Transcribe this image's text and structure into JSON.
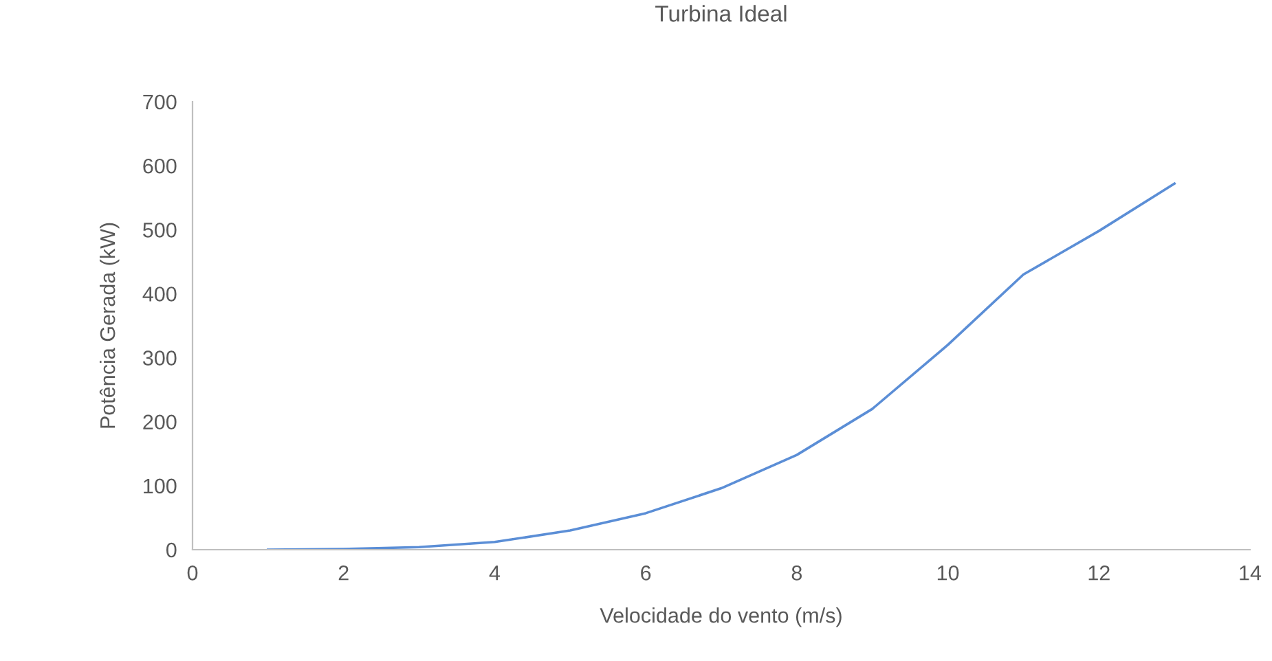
{
  "chart_data": {
    "type": "line",
    "title": "Turbina Ideal",
    "xlabel": "Velocidade do vento (m/s)",
    "ylabel": "Potência Gerada (kW)",
    "series": [
      {
        "color": "#5b8ed6",
        "x": [
          1,
          2,
          3,
          4,
          5,
          6,
          7,
          8,
          9,
          10,
          11,
          12,
          13
        ],
        "values": [
          0,
          1,
          4,
          12,
          30,
          57,
          96,
          148,
          220,
          320,
          430,
          498,
          572
        ]
      }
    ],
    "xlim": [
      0,
      14
    ],
    "xticks": [
      0,
      2,
      4,
      6,
      8,
      10,
      12,
      14
    ],
    "ylim": [
      0,
      700
    ],
    "yticks": [
      0,
      100,
      200,
      300,
      400,
      500,
      600,
      700
    ],
    "grid": false,
    "legend": false,
    "marker": "none",
    "line_style": "solid"
  }
}
